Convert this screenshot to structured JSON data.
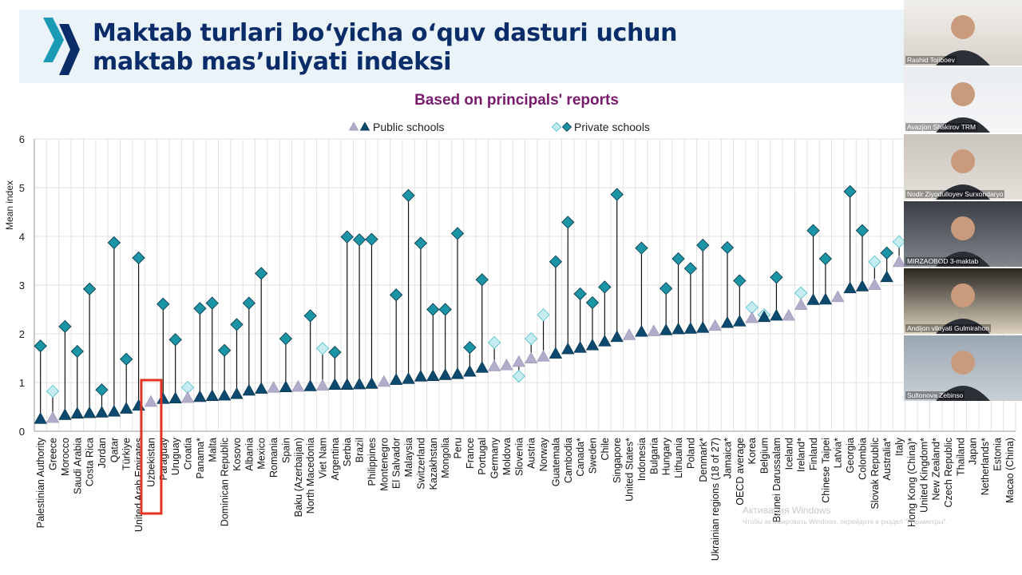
{
  "slide": {
    "title_line1": "Maktab turlari bo‘yicha o‘quv dasturi uchun",
    "title_line2": "maktab mas’uliyati indeksi"
  },
  "chart_data": {
    "type": "scatter",
    "title": "Based on principals' reports",
    "ylabel": "Mean index",
    "ylim": [
      0,
      6
    ],
    "yticks": [
      0,
      1,
      2,
      3,
      4,
      5,
      6
    ],
    "grid": true,
    "legend_position": "top-center",
    "highlighted_category": "Uzbekistan",
    "colors": {
      "public_dark": "#0b4a6e",
      "public_light": "#b3abca",
      "private_dark": "#1b94a6",
      "private_light": "#c6ecef",
      "title": "#7a1a6e",
      "highlight": "#e53323"
    },
    "categories": [
      "Palestinian Authority",
      "Greece",
      "Morocco",
      "Saudi Arabia",
      "Costa Rica",
      "Jordan",
      "Qatar",
      "Türkiye",
      "United Arab Emirates",
      "Uzbekistan",
      "Paraguay",
      "Uruguay",
      "Croatia",
      "Panama*",
      "Malta",
      "Dominican Republic",
      "Kosovo",
      "Albania",
      "Mexico",
      "Romania",
      "Spain",
      "Baku (Azerbaijan)",
      "North Macedonia",
      "Viet Nam",
      "Argentina",
      "Serbia",
      "Brazil",
      "Philippines",
      "Montenegro",
      "El Salvador",
      "Malaysia",
      "Switzerland",
      "Kazakhstan",
      "Mongolia",
      "Peru",
      "France",
      "Portugal",
      "Germany",
      "Moldova",
      "Slovenia",
      "Austria",
      "Norway",
      "Guatemala",
      "Cambodia",
      "Canada*",
      "Sweden",
      "Chile",
      "Singapore",
      "United States*",
      "Indonesia",
      "Bulgaria",
      "Hungary",
      "Lithuania",
      "Poland",
      "Denmark*",
      "Ukrainian regions (18 of 27)",
      "Jamaica*",
      "OECD average",
      "Korea",
      "Belgium",
      "Brunei Darussalam",
      "Iceland",
      "Ireland*",
      "Finland",
      "Chinese Taipei",
      "Latvia*",
      "Georgia",
      "Colombia",
      "Slovak Republic",
      "Australia*",
      "Italy",
      "Hong Kong (China)*",
      "United Kingdom*",
      "New Zealand*",
      "Czech Republic",
      "Thailand",
      "Japan",
      "Netherlands*",
      "Estonia",
      "Macao (China)"
    ],
    "series": [
      {
        "name": "Public schools",
        "values": [
          0.25,
          0.27,
          0.33,
          0.36,
          0.37,
          0.38,
          0.4,
          0.46,
          0.52,
          0.6,
          0.66,
          0.67,
          0.68,
          0.7,
          0.72,
          0.73,
          0.76,
          0.83,
          0.87,
          0.89,
          0.9,
          0.91,
          0.92,
          0.93,
          0.95,
          0.95,
          0.96,
          0.97,
          1.01,
          1.05,
          1.07,
          1.12,
          1.13,
          1.15,
          1.17,
          1.22,
          1.3,
          1.33,
          1.35,
          1.42,
          1.49,
          1.53,
          1.59,
          1.68,
          1.71,
          1.76,
          1.84,
          1.93,
          1.97,
          2.04,
          2.05,
          2.07,
          2.09,
          2.1,
          2.12,
          2.16,
          2.22,
          2.25,
          2.32,
          2.34,
          2.37,
          2.37,
          2.59,
          2.69,
          2.7,
          2.75,
          2.93,
          2.97,
          3.0,
          3.16,
          3.47,
          null,
          null,
          null,
          null,
          null,
          null,
          null,
          null,
          null
        ],
        "significant": [
          true,
          false,
          true,
          true,
          true,
          true,
          true,
          true,
          true,
          false,
          true,
          true,
          false,
          true,
          true,
          true,
          true,
          true,
          true,
          false,
          true,
          false,
          true,
          false,
          true,
          true,
          true,
          true,
          false,
          true,
          true,
          true,
          true,
          true,
          true,
          true,
          true,
          false,
          false,
          false,
          false,
          false,
          true,
          true,
          true,
          true,
          true,
          true,
          false,
          true,
          false,
          true,
          true,
          true,
          true,
          false,
          true,
          true,
          false,
          true,
          true,
          false,
          false,
          true,
          true,
          false,
          true,
          true,
          false,
          true,
          false,
          null,
          null,
          null,
          null,
          null,
          null,
          null,
          null,
          null
        ]
      },
      {
        "name": "Private schools",
        "values": [
          1.75,
          0.82,
          2.15,
          1.64,
          2.92,
          0.85,
          3.87,
          1.48,
          3.56,
          null,
          2.61,
          1.88,
          0.9,
          2.52,
          2.63,
          1.66,
          2.19,
          2.63,
          3.24,
          null,
          1.9,
          null,
          2.37,
          1.7,
          1.62,
          3.99,
          3.93,
          3.94,
          null,
          2.8,
          4.84,
          3.86,
          2.5,
          2.5,
          4.06,
          1.72,
          3.11,
          1.82,
          null,
          1.13,
          1.9,
          2.39,
          3.48,
          4.29,
          2.82,
          2.64,
          2.96,
          4.86,
          null,
          3.76,
          null,
          2.93,
          3.54,
          3.34,
          3.82,
          null,
          3.77,
          3.09,
          2.54,
          2.39,
          3.16,
          null,
          2.84,
          4.12,
          3.54,
          null,
          4.92,
          4.12,
          3.48,
          3.66,
          3.89,
          null,
          null,
          null,
          null,
          null,
          null,
          null,
          null,
          null
        ],
        "significant": [
          true,
          false,
          true,
          true,
          true,
          true,
          true,
          true,
          true,
          null,
          true,
          true,
          false,
          true,
          true,
          true,
          true,
          true,
          true,
          null,
          true,
          null,
          true,
          false,
          true,
          true,
          true,
          true,
          null,
          true,
          true,
          true,
          true,
          true,
          true,
          true,
          true,
          false,
          null,
          false,
          false,
          false,
          true,
          true,
          true,
          true,
          true,
          true,
          null,
          true,
          null,
          true,
          true,
          true,
          true,
          null,
          true,
          true,
          false,
          false,
          true,
          null,
          false,
          true,
          true,
          null,
          true,
          true,
          false,
          true,
          false,
          null,
          null,
          null,
          null,
          null,
          null,
          null,
          null,
          null
        ]
      }
    ]
  },
  "participants": [
    {
      "name": "Rashid Tojiboev",
      "icon": "person-icon"
    },
    {
      "name": "Avazjon Shakirov TRM",
      "icon": "person-icon"
    },
    {
      "name": "Nodir Ziyodulloyev Surxondaryo",
      "icon": "person-icon"
    },
    {
      "name": "MIRZAOBOD 3-maktab",
      "icon": "person-icon"
    },
    {
      "name": "Andijon viloyati Gulmirahon",
      "icon": "person-icon"
    },
    {
      "name": "Sultonova Zebinso",
      "icon": "person-icon"
    }
  ],
  "watermark": {
    "line1": "Активация Windows",
    "line2": "Чтобы активировать Windows, перейдите в раздел \"Параметры\"."
  }
}
